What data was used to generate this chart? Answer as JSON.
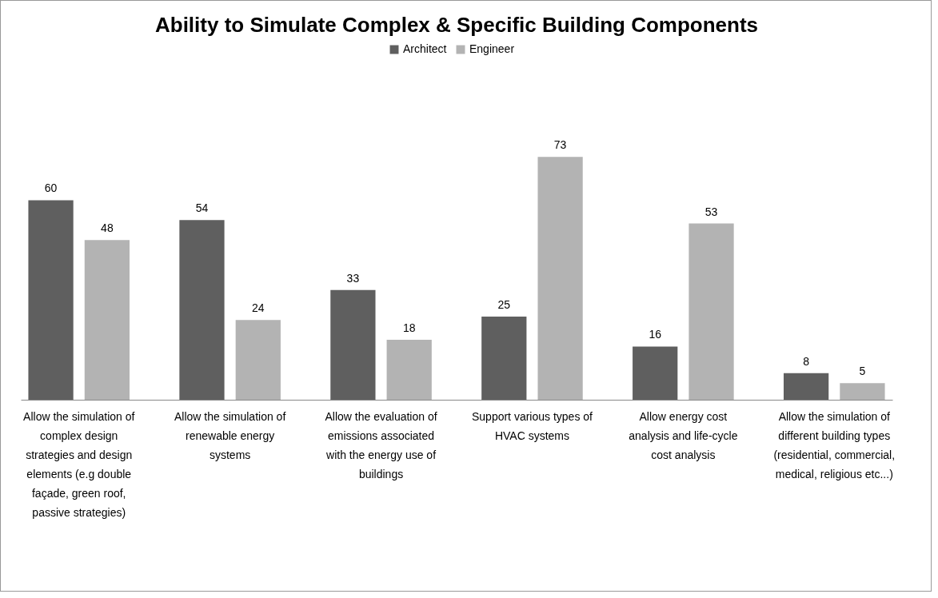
{
  "chart_data": {
    "type": "bar",
    "title": "Ability to Simulate Complex & Specific Building Components",
    "categories": [
      "Allow the simulation of complex design strategies and design elements (e.g double façade, green roof, passive strategies)",
      "Allow the simulation of renewable energy systems",
      "Allow the evaluation of emissions associated with the energy use of buildings",
      "Support various types of HVAC systems",
      "Allow energy cost analysis and life-cycle cost analysis",
      "Allow the simulation of different building types (residential, commercial, medical, religious etc...)"
    ],
    "series": [
      {
        "name": "Architect",
        "color": "#5f5f5f",
        "values": [
          60,
          54,
          33,
          25,
          16,
          8
        ]
      },
      {
        "name": "Engineer",
        "color": "#b3b3b3",
        "values": [
          48,
          24,
          18,
          73,
          53,
          5
        ]
      }
    ],
    "data_labels": true,
    "legend": "top"
  }
}
